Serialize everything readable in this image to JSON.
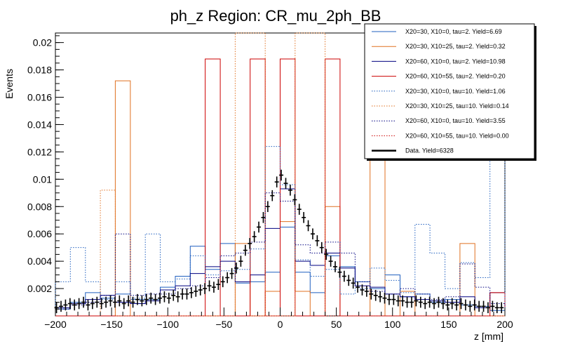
{
  "chart_data": {
    "type": "histogram",
    "title": "ph_z Region: CR_mu_2ph_BB",
    "xlabel": "z [mm]",
    "ylabel": "Events",
    "xlim": [
      -200,
      200
    ],
    "ylim": [
      0,
      0.0207
    ],
    "x_ticks": [
      -200,
      -150,
      -100,
      -50,
      0,
      50,
      100,
      150,
      200
    ],
    "x_tick_labels": [
      "−200",
      "−150",
      "−100",
      "−50",
      "0",
      "50",
      "100",
      "150",
      "200"
    ],
    "y_ticks": [
      0.002,
      0.004,
      0.006,
      0.008,
      0.01,
      0.012,
      0.014,
      0.016,
      0.018,
      0.02
    ],
    "y_tick_labels": [
      "0.002",
      "0.004",
      "0.006",
      "0.008",
      "0.01",
      "0.012",
      "0.014",
      "0.016",
      "0.018",
      "0.02"
    ],
    "grid": false,
    "legend_position": "top-right",
    "bin_edges": [
      -200,
      -186.7,
      -173.3,
      -160,
      -146.7,
      -133.3,
      -120,
      -106.7,
      -93.3,
      -80,
      -66.7,
      -53.3,
      -40,
      -26.7,
      -13.3,
      0,
      13.3,
      26.7,
      40,
      53.3,
      66.7,
      80,
      93.3,
      106.7,
      120,
      133.3,
      146.7,
      160,
      173.3,
      186.7,
      200
    ],
    "series": [
      {
        "name": "X20=30, X10=0, tau=2. Yield=6.69",
        "color": "#1f5fbf",
        "dash": "solid",
        "values": [
          0.0005,
          0.001,
          0.0017,
          0.0013,
          0.0016,
          0.0012,
          0.0012,
          0.0021,
          0.0029,
          0.0051,
          0.0034,
          0.0053,
          0.0024,
          0.0025,
          0.0032,
          0.0065,
          0.0032,
          0.0017,
          0.0044,
          0.0036,
          0.0025,
          0.002,
          0.003,
          0.0014,
          0.0016,
          0.001,
          0.0012,
          0.0008,
          0.0007,
          0.0004
        ]
      },
      {
        "name": "X20=30, X10=25, tau=2. Yield=0.32",
        "color": "#e07020",
        "dash": "solid",
        "values": [
          0,
          0,
          0,
          0,
          0.0172,
          0,
          0,
          0,
          0,
          0,
          0,
          0,
          0.0053,
          0,
          0.0018,
          0.0069,
          0.0018,
          0,
          0.008,
          0,
          0,
          0.0159,
          0,
          0.0018,
          0,
          0,
          0,
          0.0053,
          0,
          0
        ]
      },
      {
        "name": "X20=60, X10=0, tau=2. Yield=10.98",
        "color": "#000080",
        "dash": "solid",
        "values": [
          0.0006,
          0.0009,
          0.0012,
          0.0015,
          0.001,
          0.0009,
          0.0011,
          0.0019,
          0.0022,
          0.0031,
          0.0036,
          0.004,
          0.0025,
          0.003,
          0.0064,
          0.0093,
          0.004,
          0.0037,
          0.0046,
          0.0035,
          0.0022,
          0.0021,
          0.0016,
          0.0014,
          0.0012,
          0.0011,
          0.001,
          0.0014,
          0.0006,
          0.0017
        ]
      },
      {
        "name": "X20=60, X10=55, tau=2. Yield=0.20",
        "color": "#cc0000",
        "dash": "solid",
        "values": [
          0,
          0,
          0,
          0,
          0,
          0,
          0,
          0,
          0,
          0,
          0.0188,
          0,
          0,
          0.0188,
          0,
          0.0188,
          0,
          0,
          0.0188,
          0,
          0,
          0,
          0,
          0,
          0,
          0,
          0,
          0,
          0,
          0.0017
        ]
      },
      {
        "name": "X20=30, X10=0, tau=10. Yield=1.06",
        "color": "#1f5fbf",
        "dash": "dotted",
        "values": [
          0.0025,
          0.005,
          0.0025,
          0.0012,
          0.0025,
          0.0013,
          0.006,
          0.0025,
          0.0027,
          0.0044,
          0.003,
          0.0033,
          0.0034,
          0.0049,
          0.0124,
          0.0096,
          0.0041,
          0.0029,
          0.0034,
          0.0016,
          0.002,
          0.0035,
          0.0026,
          0.0017,
          0.0067,
          0.0046,
          0.002,
          0.0039,
          0.0028,
          0.0126
        ]
      },
      {
        "name": "X20=30, X10=25, tau=10. Yield=0.14",
        "color": "#e07020",
        "dash": "dotted",
        "values": [
          0,
          0,
          0,
          0.0092,
          0,
          0,
          0,
          0,
          0,
          0,
          0,
          0,
          0.0207,
          0.0207,
          0,
          0,
          0.0207,
          0.0207,
          0,
          0,
          0,
          0,
          0,
          0,
          0,
          0,
          0,
          0,
          0,
          0
        ]
      },
      {
        "name": "X20=60, X10=0, tau=10. Yield=3.55",
        "color": "#000080",
        "dash": "dotted",
        "values": [
          0.0005,
          0.0008,
          0.001,
          0.0015,
          0.006,
          0.0015,
          0.0016,
          0.0016,
          0.002,
          0.0022,
          0.0028,
          0.0044,
          0.0046,
          0.0054,
          0.009,
          0.0084,
          0.0052,
          0.0046,
          0.0054,
          0.0046,
          0.0025,
          0.0018,
          0.0016,
          0.002,
          0.0016,
          0.0012,
          0.0014,
          0.0038,
          0.0021,
          0.0009
        ]
      },
      {
        "name": "X20=60, X10=55, tau=10. Yield=0.00",
        "color": "#cc0000",
        "dash": "dotted",
        "values": [
          0,
          0,
          0,
          0,
          0,
          0,
          0,
          0,
          0,
          0,
          0,
          0,
          0,
          0,
          0,
          0,
          0,
          0,
          0,
          0,
          0,
          0,
          0,
          0,
          0,
          0,
          0,
          0,
          0,
          0
        ]
      }
    ],
    "data_series": {
      "name": "Data. Yield=6328",
      "color": "#000000",
      "x": [
        -199,
        -195,
        -191,
        -187,
        -183,
        -179,
        -175,
        -171,
        -167,
        -163,
        -159,
        -155,
        -151,
        -147,
        -143,
        -139,
        -135,
        -131,
        -127,
        -123,
        -119,
        -115,
        -111,
        -107,
        -103,
        -99,
        -95,
        -91,
        -87,
        -83,
        -79,
        -75,
        -71,
        -67,
        -63,
        -59,
        -55,
        -51,
        -47,
        -43,
        -39,
        -35,
        -31,
        -27,
        -23,
        -19,
        -15,
        -11,
        -7,
        -3,
        1,
        5,
        9,
        13,
        17,
        21,
        25,
        29,
        33,
        37,
        41,
        45,
        49,
        53,
        57,
        61,
        65,
        69,
        73,
        77,
        81,
        85,
        89,
        93,
        97,
        101,
        105,
        109,
        113,
        117,
        121,
        125,
        129,
        133,
        137,
        141,
        145,
        149,
        153,
        157,
        161,
        165,
        169,
        173,
        177,
        181,
        185,
        189,
        193,
        197
      ],
      "y": [
        0.0006,
        0.0007,
        0.0008,
        0.0009,
        0.0008,
        0.0009,
        0.001,
        0.0008,
        0.0009,
        0.001,
        0.0009,
        0.001,
        0.0011,
        0.001,
        0.0011,
        0.0009,
        0.0011,
        0.001,
        0.0012,
        0.0011,
        0.0012,
        0.0013,
        0.0012,
        0.0013,
        0.0014,
        0.0013,
        0.0015,
        0.0014,
        0.0016,
        0.0016,
        0.0017,
        0.0018,
        0.0019,
        0.002,
        0.0022,
        0.0021,
        0.0023,
        0.0025,
        0.0028,
        0.0031,
        0.0035,
        0.004,
        0.0048,
        0.0053,
        0.0058,
        0.0065,
        0.0072,
        0.008,
        0.0088,
        0.0098,
        0.0103,
        0.0097,
        0.0092,
        0.0085,
        0.0078,
        0.0072,
        0.0066,
        0.006,
        0.0055,
        0.005,
        0.0045,
        0.004,
        0.0036,
        0.0032,
        0.0029,
        0.0026,
        0.0024,
        0.0021,
        0.0019,
        0.0018,
        0.0016,
        0.0015,
        0.0014,
        0.0013,
        0.0012,
        0.0012,
        0.0011,
        0.0011,
        0.001,
        0.001,
        0.0011,
        0.001,
        0.0009,
        0.001,
        0.0009,
        0.001,
        0.0009,
        0.0008,
        0.0009,
        0.0008,
        0.0009,
        0.0008,
        0.0007,
        0.0008,
        0.0007,
        0.0007,
        0.0006,
        0.0007,
        0.0006,
        0.0006
      ],
      "yerr": 0.0004
    }
  }
}
